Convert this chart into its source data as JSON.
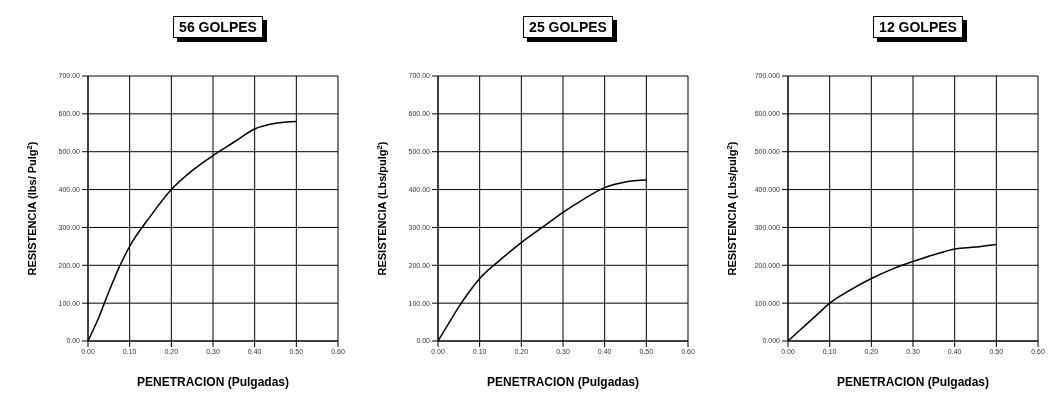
{
  "chart_data": [
    {
      "type": "line",
      "title": "56 GOLPES",
      "xlabel": "PENETRACION (Pulgadas)",
      "ylabel": "RESISTENCIA (lbs/ Pulg$^{2}$)",
      "x": [
        0,
        0.025,
        0.05,
        0.075,
        0.1,
        0.15,
        0.2,
        0.25,
        0.3,
        0.35,
        0.4,
        0.45,
        0.5
      ],
      "series": [
        {
          "color": "#000000",
          "values": [
            0,
            60,
            130,
            195,
            250,
            330,
            400,
            450,
            490,
            525,
            560,
            575,
            580
          ]
        }
      ],
      "xlim": [
        0,
        0.6
      ],
      "ylim": [
        0,
        700
      ],
      "xticks": [
        {
          "value": 0,
          "label": "0.00"
        },
        {
          "value": 0.1,
          "label": "0.10"
        },
        {
          "value": 0.2,
          "label": "0.20"
        },
        {
          "value": 0.3,
          "label": "0.30"
        },
        {
          "value": 0.4,
          "label": "0.40"
        },
        {
          "value": 0.5,
          "label": "0.50"
        },
        {
          "value": 0.6,
          "label": "0.60"
        }
      ],
      "yticks": [
        {
          "value": 0,
          "label": "0.00"
        },
        {
          "value": 100,
          "label": "100.00"
        },
        {
          "value": 200,
          "label": "200.00"
        },
        {
          "value": 300,
          "label": "300.00"
        },
        {
          "value": 400,
          "label": "400.00"
        },
        {
          "value": 500,
          "label": "500.00"
        },
        {
          "value": 600,
          "label": "600.00"
        },
        {
          "value": 700,
          "label": "700.00"
        }
      ],
      "grid": true,
      "legend": false,
      "marker": "none",
      "line_style": "solid"
    },
    {
      "type": "line",
      "title": "25 GOLPES",
      "xlabel": "PENETRACION (Pulgadas)",
      "ylabel": "RESISTENCIA (Lbs/pulg$^{2}$)",
      "x": [
        0,
        0.025,
        0.05,
        0.075,
        0.1,
        0.15,
        0.2,
        0.25,
        0.3,
        0.35,
        0.4,
        0.45,
        0.5
      ],
      "series": [
        {
          "color": "#000000",
          "values": [
            0,
            45,
            90,
            130,
            165,
            215,
            260,
            300,
            340,
            375,
            405,
            420,
            425
          ]
        }
      ],
      "xlim": [
        0,
        0.6
      ],
      "ylim": [
        0,
        700
      ],
      "xticks": [
        {
          "value": 0,
          "label": "0.00"
        },
        {
          "value": 0.1,
          "label": "0.10"
        },
        {
          "value": 0.2,
          "label": "0.20"
        },
        {
          "value": 0.3,
          "label": "0.30"
        },
        {
          "value": 0.4,
          "label": "0.40"
        },
        {
          "value": 0.5,
          "label": "0.50"
        },
        {
          "value": 0.6,
          "label": "0.60"
        }
      ],
      "yticks": [
        {
          "value": 0,
          "label": "0.00"
        },
        {
          "value": 100,
          "label": "100.00"
        },
        {
          "value": 200,
          "label": "200.00"
        },
        {
          "value": 300,
          "label": "300.00"
        },
        {
          "value": 400,
          "label": "400.00"
        },
        {
          "value": 500,
          "label": "500.00"
        },
        {
          "value": 600,
          "label": "600.00"
        },
        {
          "value": 700,
          "label": "700.00"
        }
      ],
      "grid": true,
      "legend": false,
      "marker": "none",
      "line_style": "solid"
    },
    {
      "type": "line",
      "title": "12 GOLPES",
      "xlabel": "PENETRACION (Pulgadas)",
      "ylabel": "RESISTENCIA (Lbs/pulg$^{2}$)",
      "x": [
        0,
        0.025,
        0.05,
        0.075,
        0.1,
        0.15,
        0.2,
        0.25,
        0.3,
        0.35,
        0.4,
        0.45,
        0.5
      ],
      "series": [
        {
          "color": "#000000",
          "values": [
            0,
            25,
            50,
            75,
            100,
            135,
            165,
            190,
            210,
            228,
            243,
            248,
            255
          ]
        }
      ],
      "xlim": [
        0,
        0.6
      ],
      "ylim": [
        0,
        700
      ],
      "xticks": [
        {
          "value": 0,
          "label": "0.00"
        },
        {
          "value": 0.1,
          "label": "0.10"
        },
        {
          "value": 0.2,
          "label": "0.20"
        },
        {
          "value": 0.3,
          "label": "0.30"
        },
        {
          "value": 0.4,
          "label": "0.40"
        },
        {
          "value": 0.5,
          "label": "0.50"
        },
        {
          "value": 0.6,
          "label": "0.60"
        }
      ],
      "yticks": [
        {
          "value": 0,
          "label": "0.000"
        },
        {
          "value": 100,
          "label": "100.000"
        },
        {
          "value": 200,
          "label": "200.000"
        },
        {
          "value": 300,
          "label": "300.000"
        },
        {
          "value": 400,
          "label": "400.000"
        },
        {
          "value": 500,
          "label": "500.000"
        },
        {
          "value": 600,
          "label": "600.000"
        },
        {
          "value": 700,
          "label": "700.000"
        }
      ],
      "grid": true,
      "legend": false,
      "marker": "none",
      "line_style": "solid"
    }
  ]
}
